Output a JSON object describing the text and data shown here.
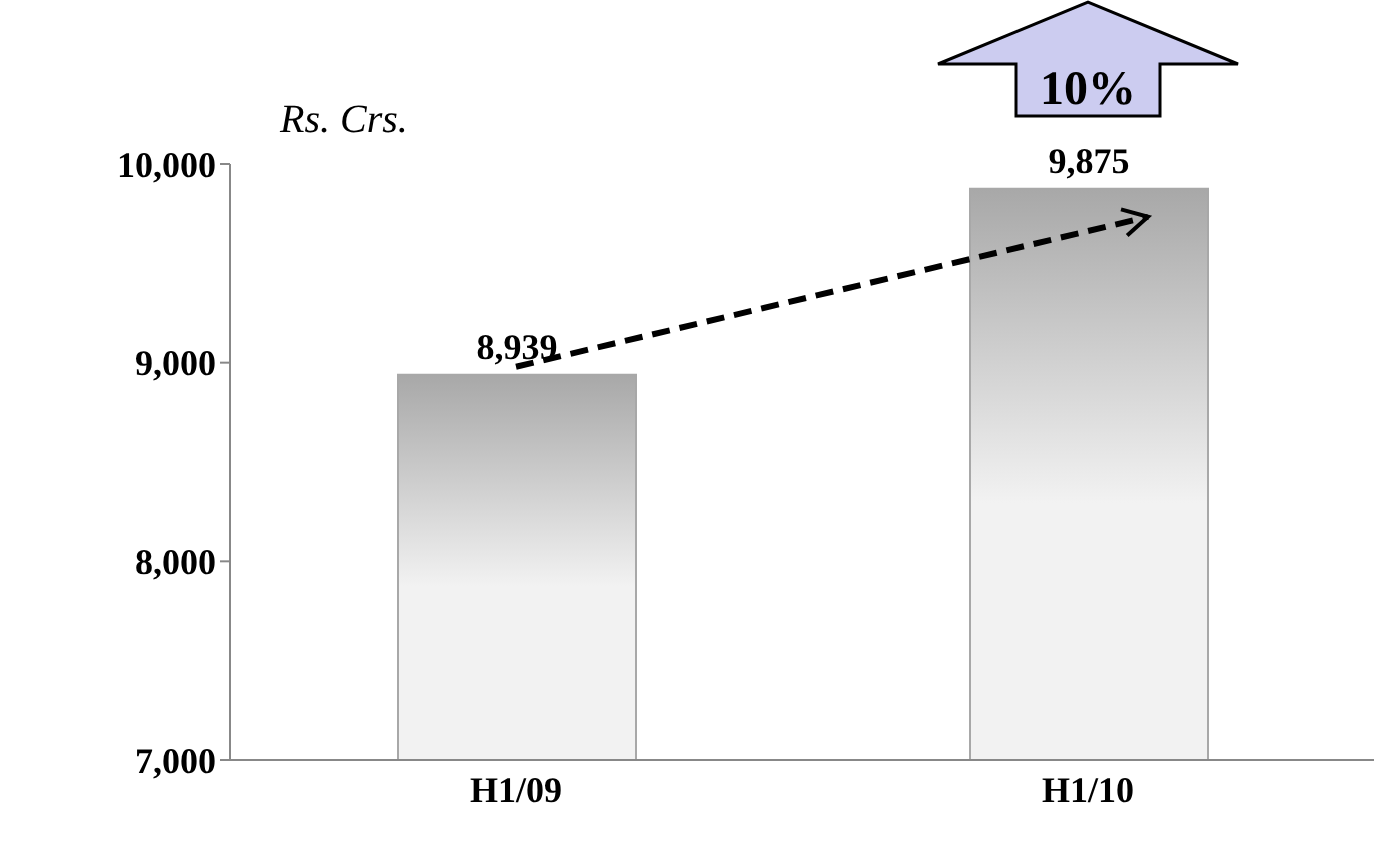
{
  "chart_data": {
    "type": "bar",
    "ylabel": "Rs. Crs.",
    "categories": [
      "H1/09",
      "H1/10"
    ],
    "values": [
      8939,
      9875
    ],
    "color": "#a8a8a8",
    "value_labels": [
      "8,939",
      "9,875"
    ],
    "ylim": [
      7000,
      10000
    ],
    "yticks": [
      {
        "value": 7000,
        "label": "7,000"
      },
      {
        "value": 8000,
        "label": "8,000"
      },
      {
        "value": 9000,
        "label": "9,000"
      },
      {
        "value": 10000,
        "label": "10,000"
      }
    ],
    "annotations": [
      "10%"
    ]
  }
}
